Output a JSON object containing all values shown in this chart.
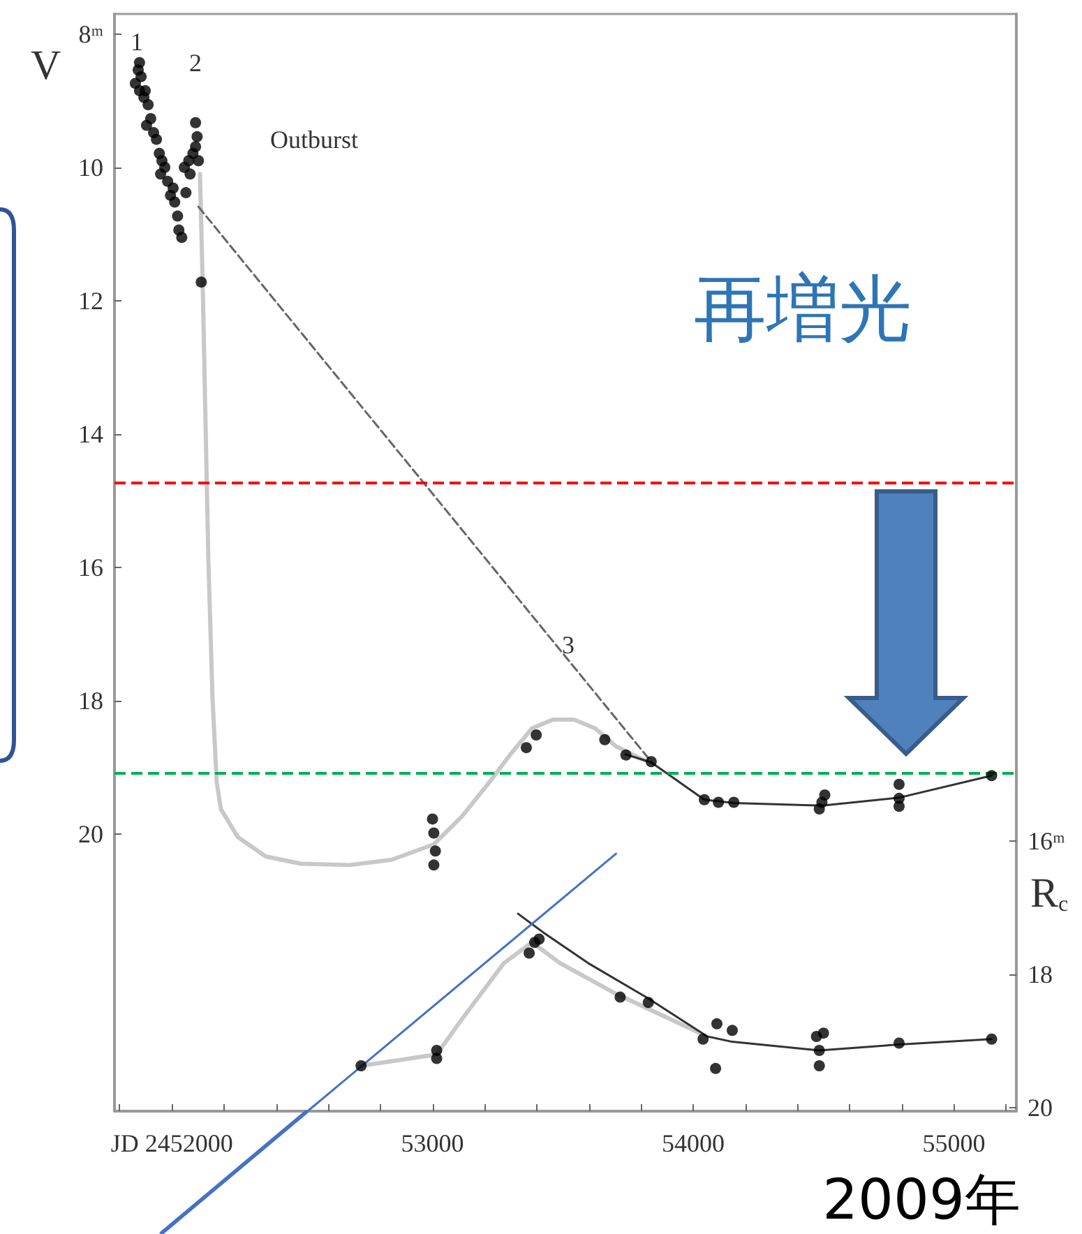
{
  "chart_data": {
    "type": "scatter",
    "ylabel": "V",
    "y2label": "R$_{c}$",
    "annotations": [
      "1",
      "2",
      "Outburst",
      "3",
      "再増光",
      "2009年"
    ],
    "xlim": [
      51780,
      55240
    ],
    "xticks": [
      {
        "value": 51800,
        "label": null
      },
      {
        "value": 52000,
        "label": "JD 2452000"
      },
      {
        "value": 52200,
        "label": null
      },
      {
        "value": 52400,
        "label": null
      },
      {
        "value": 52600,
        "label": null
      },
      {
        "value": 52800,
        "label": null
      },
      53000,
      {
        "value": 53200,
        "label": null
      },
      {
        "value": 53400,
        "label": null
      },
      {
        "value": 53600,
        "label": null
      },
      {
        "value": 53800,
        "label": null
      },
      54000,
      {
        "value": 54200,
        "label": null
      },
      {
        "value": 54400,
        "label": null
      },
      {
        "value": 54600,
        "label": null
      },
      {
        "value": 54800,
        "label": null
      },
      55000,
      {
        "value": 55200,
        "label": null
      }
    ],
    "ylim": [
      24.15,
      7.7
    ],
    "yticks": [
      {
        "value": 8,
        "label": "8ᵐ"
      },
      10,
      12,
      14,
      16,
      18,
      20
    ],
    "y2lim": [
      20.05,
      3.6
    ],
    "y2ticks": [
      {
        "value": 16,
        "label": "16ᵐ"
      },
      18,
      20
    ],
    "ref_lines": [
      {
        "axis": "y",
        "value": 14.72,
        "color": "#ff0000",
        "line_style": "dashed"
      },
      {
        "axis": "y",
        "value": 19.09,
        "color": "#00b050",
        "line_style": "dashed"
      }
    ],
    "series": [
      {
        "color": "#000000",
        "marker": "circle",
        "x": [
          51860,
          51871,
          51876,
          51882,
          51893,
          51876,
          51898,
          51909,
          51919,
          51903,
          51930,
          51941,
          51952,
          51962,
          51957,
          51973,
          51984,
          51995,
          52005,
          52011,
          52022,
          52027,
          52038,
          52048,
          52065,
          52081,
          52091,
          52097,
          52091,
          52102,
          52070,
          52054,
          52113,
          53000,
          53005,
          53011,
          53005,
          53360,
          53398,
          53661,
          53742,
          53839,
          54043,
          54097,
          54156,
          54494,
          54484,
          54505,
          54790,
          54790,
          54790,
          55145
        ],
        "values": [
          8.74,
          8.54,
          8.43,
          8.64,
          8.95,
          8.85,
          8.85,
          9.06,
          9.27,
          9.37,
          9.48,
          9.58,
          9.79,
          9.9,
          10.1,
          10.0,
          10.21,
          10.42,
          10.31,
          10.52,
          10.73,
          10.94,
          11.05,
          10.0,
          9.9,
          9.79,
          9.69,
          9.54,
          9.33,
          9.9,
          10.1,
          10.38,
          11.72,
          19.77,
          19.98,
          20.25,
          20.46,
          18.7,
          18.51,
          18.58,
          18.81,
          18.91,
          19.48,
          19.52,
          19.52,
          19.52,
          19.62,
          19.41,
          19.25,
          19.46,
          19.58,
          19.12
        ]
      },
      {
        "type": "line",
        "color": "#c8c8c8",
        "marker": "none",
        "line_style": "solid",
        "x": [
          52108,
          52118,
          52129,
          52140,
          52156,
          52172,
          52188,
          52253,
          52360,
          52495,
          52683,
          52844,
          53005,
          53113,
          53220,
          53301,
          53382,
          53462,
          53543,
          53624,
          53704,
          53812
        ],
        "values": [
          10.1,
          11.67,
          13.77,
          15.86,
          17.95,
          19.21,
          19.62,
          20.04,
          20.33,
          20.44,
          20.46,
          20.38,
          20.15,
          19.73,
          19.21,
          18.79,
          18.41,
          18.28,
          18.28,
          18.41,
          18.68,
          18.89
        ]
      },
      {
        "type": "line",
        "color": "#666666",
        "marker": "none",
        "line_style": "dashed",
        "x": [
          52102,
          53839
        ],
        "values": [
          10.59,
          18.91
        ]
      },
      {
        "type": "line",
        "color": "#333333",
        "marker": "none",
        "line_style": "solid",
        "x": [
          53740,
          53839,
          54043,
          54156,
          54494,
          54790,
          55145
        ],
        "values": [
          18.8,
          18.92,
          19.48,
          19.53,
          19.57,
          19.45,
          19.12
        ]
      },
      {
        "axis": "y2",
        "color": "#000000",
        "marker": "circle",
        "x": [
          52726,
          53016,
          53016,
          53371,
          53392,
          53409,
          53720,
          53828,
          54038,
          54091,
          54086,
          54150,
          54473,
          54484,
          54484,
          54500,
          54790,
          55145
        ],
        "values": [
          19.37,
          19.14,
          19.26,
          17.68,
          17.52,
          17.47,
          18.34,
          18.42,
          18.97,
          18.74,
          19.41,
          18.84,
          18.93,
          19.14,
          19.37,
          18.88,
          19.03,
          18.97
        ]
      },
      {
        "type": "line",
        "axis": "y2",
        "color": "#c8c8c8",
        "marker": "none",
        "line_style": "solid",
        "x": [
          52726,
          53016,
          53113,
          53274,
          53382,
          53489,
          53704,
          54027
        ],
        "values": [
          19.37,
          19.2,
          18.67,
          17.83,
          17.52,
          17.83,
          18.29,
          18.88
        ]
      },
      {
        "type": "line",
        "axis": "y2",
        "color": "#333333",
        "marker": "none",
        "line_style": "solid",
        "x": [
          53328,
          53425,
          53597,
          53828,
          54054,
          54150,
          54484,
          54790,
          55145
        ],
        "values": [
          17.09,
          17.37,
          17.83,
          18.36,
          18.93,
          19.01,
          19.14,
          19.05,
          18.97
        ]
      },
      {
        "type": "line",
        "color": "#4472c4",
        "marker": "none",
        "line_style": "solid",
        "x": [
          52521,
          53704
        ],
        "values": [
          24.15,
          20.29
        ]
      }
    ]
  }
}
